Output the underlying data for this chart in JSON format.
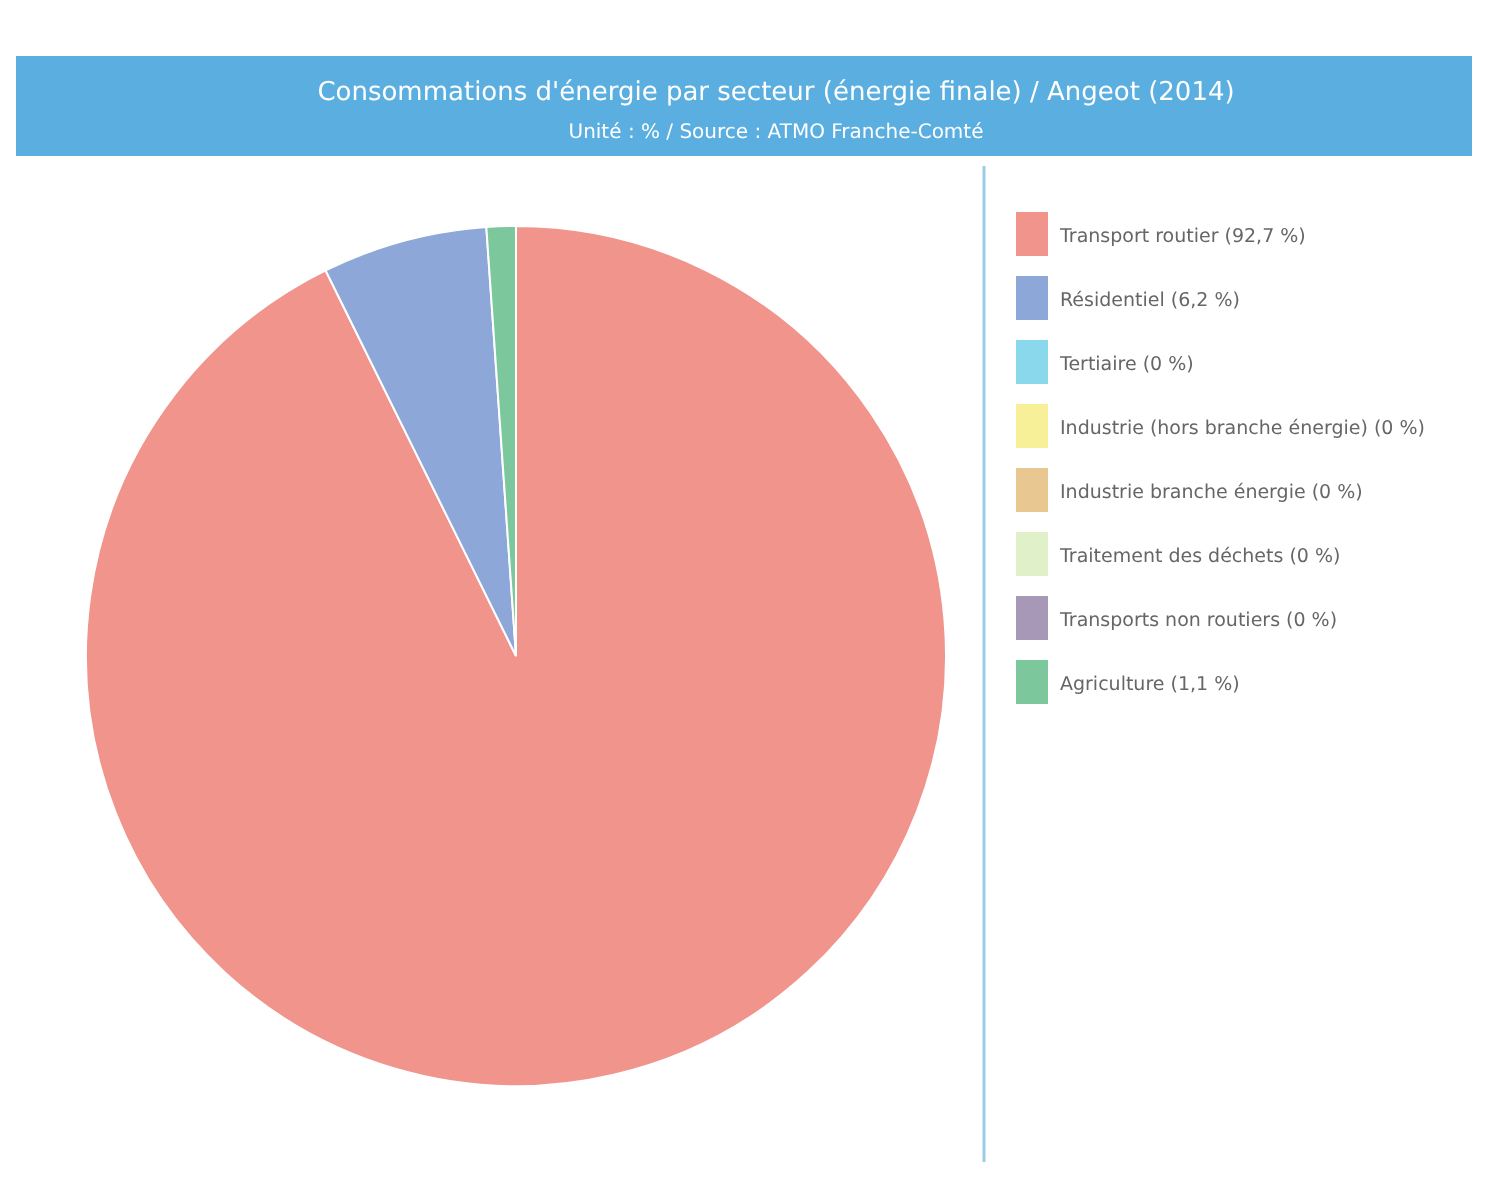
{
  "chart_data": {
    "type": "pie",
    "title": "Consommations d'énergie par secteur (énergie finale) / Angeot (2014)",
    "subtitle": "Unité : % / Source : ATMO Franche-Comté",
    "categories": [
      "Transport routier (92,7 %)",
      "Résidentiel (6,2 %)",
      "Tertiaire (0 %)",
      "Industrie (hors branche énergie) (0 %)",
      "Industrie branche énergie (0 %)",
      "Traitement des déchets (0 %)",
      "Transports non routiers (0 %)",
      "Agriculture (1,1 %)"
    ],
    "values": [
      92.7,
      6.2,
      0,
      0,
      0,
      0,
      0,
      1.1
    ],
    "colors": [
      "#f0948c",
      "#8da8d8",
      "#8ad8ec",
      "#f8f098",
      "#e8c890",
      "#e0f0c8",
      "#a898b8",
      "#7cc89c"
    ],
    "legend": "right"
  }
}
